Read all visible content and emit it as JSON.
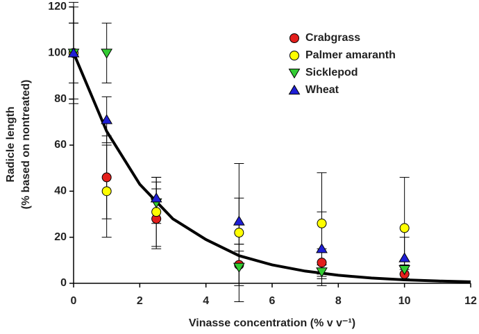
{
  "chart_data": {
    "type": "scatter",
    "y_label": [
      "Radicle length",
      "(% based on nontreated)"
    ],
    "x_label": "Vinasse concentration (% v v⁻¹)",
    "xlim": [
      0,
      12
    ],
    "xticks": [
      0,
      2,
      4,
      6,
      8,
      10,
      12
    ],
    "ylim": [
      0,
      120
    ],
    "yticks": [
      0,
      20,
      40,
      60,
      80,
      100,
      120
    ],
    "legend": "top-right",
    "x": [
      0,
      1,
      2.5,
      5,
      7.5,
      10
    ],
    "series": [
      {
        "name": "Crabgrass",
        "color": "#e31f1c",
        "marker": "circle",
        "values": [
          100,
          46,
          28,
          8,
          9,
          4
        ],
        "errors": [
          20,
          18,
          13,
          9,
          6,
          2
        ]
      },
      {
        "name": "Palmer amaranth",
        "color": "#ffff00",
        "marker": "circle",
        "values": [
          100,
          40,
          31,
          22,
          26,
          24
        ],
        "errors": [
          13,
          20,
          15,
          30,
          22,
          22
        ]
      },
      {
        "name": "Sicklepod",
        "color": "#33cc33",
        "marker": "triangle-down",
        "values": [
          100,
          100,
          35,
          7,
          5,
          6
        ],
        "errors": [
          13,
          13,
          9,
          7,
          3,
          2
        ]
      },
      {
        "name": "Wheat",
        "color": "#1f1fd6",
        "marker": "triangle-up",
        "values": [
          100,
          71,
          37,
          27,
          15,
          11
        ],
        "errors": [
          22,
          10,
          9,
          10,
          16,
          9
        ]
      }
    ],
    "fit": {
      "color": "#000000",
      "x": [
        0,
        1,
        2,
        3,
        4,
        5,
        6,
        7,
        8,
        9,
        10,
        11,
        12
      ],
      "values": [
        100,
        66,
        43,
        28,
        19,
        12,
        8,
        5.3,
        3.5,
        2.3,
        1.5,
        1.0,
        0.65
      ]
    }
  }
}
